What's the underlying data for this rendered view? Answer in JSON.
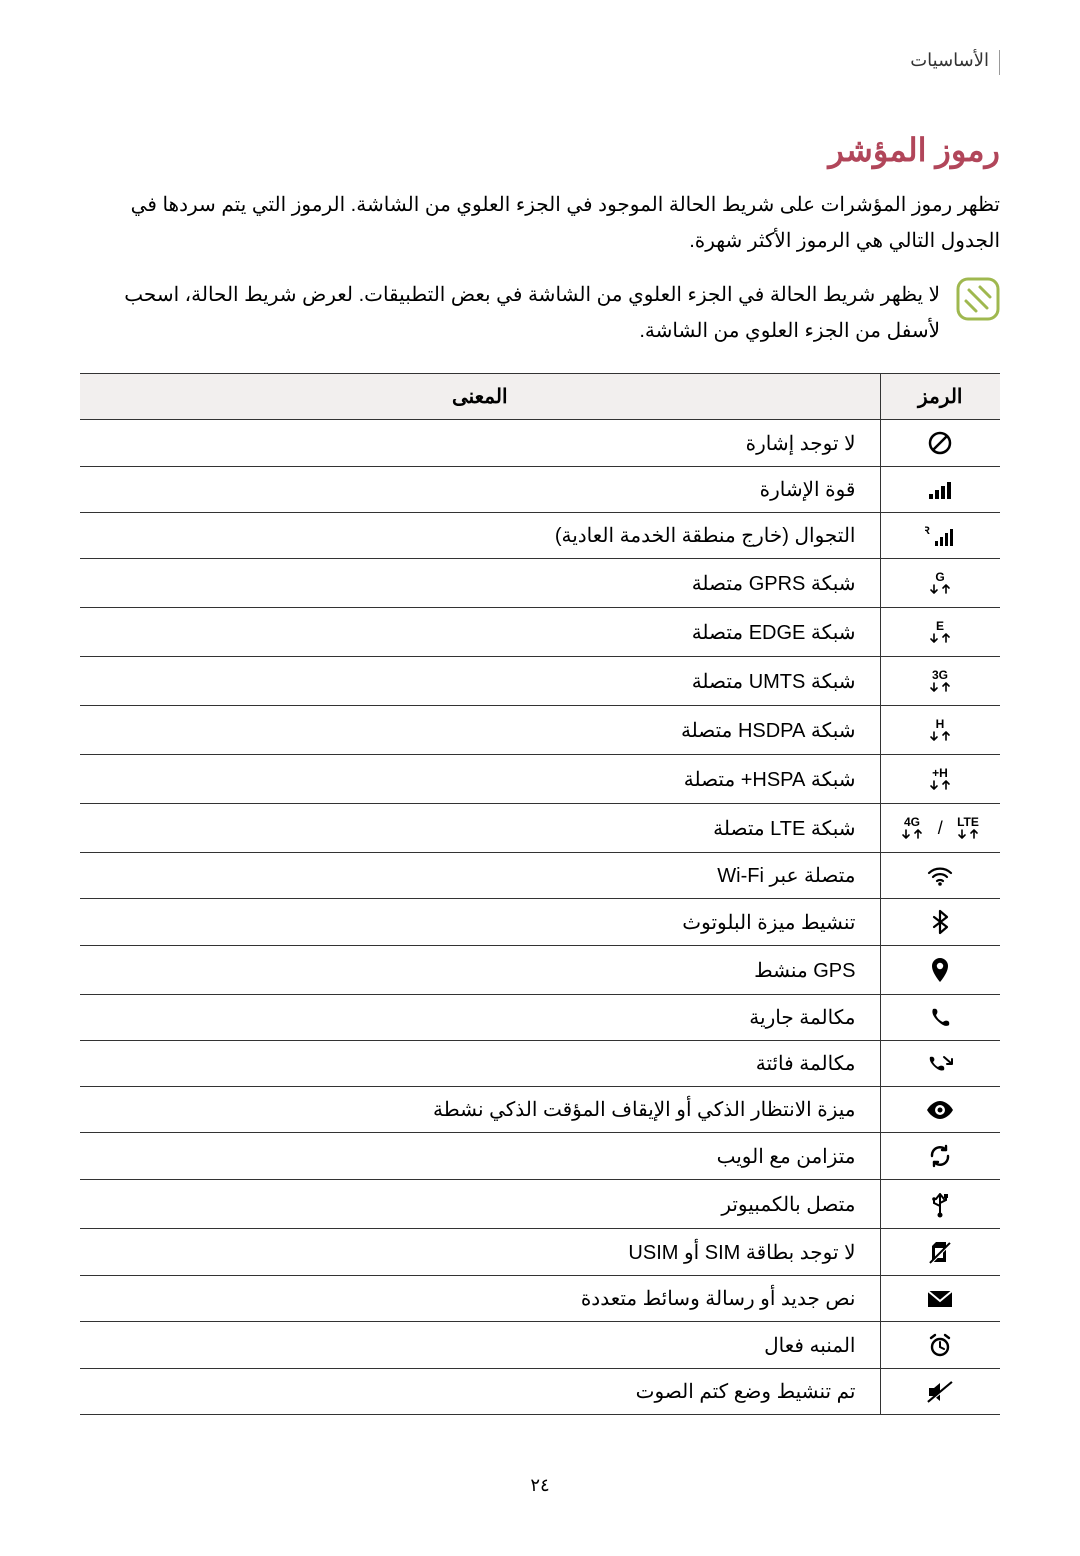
{
  "colors": {
    "accent": "#b1465a",
    "outline_green": "#9fb84f",
    "text": "#000000",
    "header_bg": "#f2efee",
    "border": "#333333"
  },
  "header": {
    "breadcrumb": "الأساسيات"
  },
  "section": {
    "title": "رموز المؤشر",
    "intro": "تظهر رموز المؤشرات على شريط الحالة الموجود في الجزء العلوي من الشاشة. الرموز التي يتم سردها في الجدول التالي هي الرموز الأكثر شهرة.",
    "note": "لا يظهر شريط الحالة في الجزء العلوي من الشاشة في بعض التطبيقات. لعرض شريط الحالة، اسحب لأسفل من الجزء العلوي من الشاشة."
  },
  "table": {
    "headers": {
      "icon": "الرمز",
      "meaning": "المعنى"
    },
    "rows": [
      {
        "icon": "no-signal",
        "meaning": "لا توجد إشارة"
      },
      {
        "icon": "signal",
        "meaning": "قوة الإشارة"
      },
      {
        "icon": "roaming",
        "meaning": "التجوال (خارج منطقة الخدمة العادية)"
      },
      {
        "icon": "gprs",
        "meaning": "شبكة GPRS متصلة"
      },
      {
        "icon": "edge",
        "meaning": "شبكة EDGE متصلة"
      },
      {
        "icon": "umts",
        "meaning": "شبكة UMTS متصلة"
      },
      {
        "icon": "hsdpa",
        "meaning": "شبكة HSDPA متصلة"
      },
      {
        "icon": "hspa-plus",
        "meaning": "شبكة HSPA+ متصلة"
      },
      {
        "icon": "lte",
        "meaning": "شبكة LTE متصلة"
      },
      {
        "icon": "wifi",
        "meaning": "متصلة عبر Wi-Fi"
      },
      {
        "icon": "bluetooth",
        "meaning": "تنشيط ميزة البلوتوث"
      },
      {
        "icon": "gps",
        "meaning": "GPS منشط"
      },
      {
        "icon": "call",
        "meaning": "مكالمة جارية"
      },
      {
        "icon": "missed-call",
        "meaning": "مكالمة فائتة"
      },
      {
        "icon": "smart-stay",
        "meaning": "ميزة الانتظار الذكي أو الإيقاف المؤقت الذكي نشطة"
      },
      {
        "icon": "sync",
        "meaning": "متزامن مع الويب"
      },
      {
        "icon": "usb",
        "meaning": "متصل بالكمبيوتر"
      },
      {
        "icon": "no-sim",
        "meaning": "لا توجد بطاقة SIM أو USIM"
      },
      {
        "icon": "message",
        "meaning": "نص جديد أو رسالة وسائط متعددة"
      },
      {
        "icon": "alarm",
        "meaning": "المنبه فعال"
      },
      {
        "icon": "mute",
        "meaning": "تم تنشيط وضع كتم الصوت"
      }
    ]
  },
  "net_labels": {
    "gprs": "G",
    "edge": "E",
    "umts": "3G",
    "hsdpa": "H",
    "hspa-plus": "H+",
    "lte_a": "4G",
    "lte_b": "LTE"
  },
  "footer": {
    "page_number": "٢٤"
  }
}
